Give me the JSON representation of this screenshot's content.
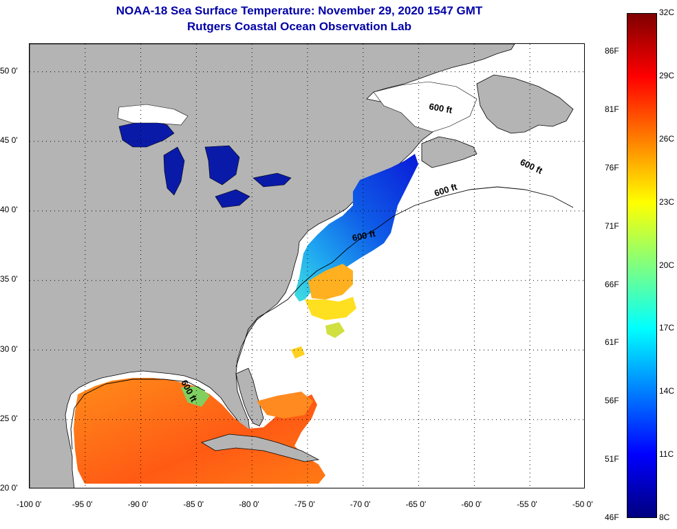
{
  "title": {
    "line1": "NOAA-18 Sea Surface Temperature:  November 29, 2020 1547 GMT",
    "line2": "Rutgers Coastal Ocean Observation Lab"
  },
  "map": {
    "lon_range": [
      -100,
      -50
    ],
    "lat_range": [
      20,
      52
    ],
    "lon_ticks": [
      "-100 0'",
      "-95 0'",
      "-90 0'",
      "-85 0'",
      "-80 0'",
      "-75 0'",
      "-70 0'",
      "-65 0'",
      "-60 0'",
      "-55 0'",
      "-50 0'"
    ],
    "lon_tick_values": [
      -100,
      -95,
      -90,
      -85,
      -80,
      -75,
      -70,
      -65,
      -60,
      -55,
      -50
    ],
    "lat_ticks": [
      "20 0'",
      "25 0'",
      "30 0'",
      "35 0'",
      "40 0'",
      "45 0'",
      "50 0'"
    ],
    "lat_tick_values": [
      20,
      25,
      30,
      35,
      40,
      45,
      50
    ],
    "grid": "dotted",
    "land_color": "#b4b4b4",
    "isobath_labels": [
      "600 ft",
      "600 ft",
      "600 ft",
      "600 ft",
      "600 ft"
    ]
  },
  "colorbar": {
    "celsius_labels": [
      "32C",
      "29C",
      "26C",
      "23C",
      "20C",
      "17C",
      "14C",
      "11C",
      "8C"
    ],
    "fahrenheit_labels": [
      "86F",
      "81F",
      "76F",
      "71F",
      "66F",
      "61F",
      "56F",
      "51F",
      "46F"
    ],
    "range_c": [
      8,
      32
    ],
    "colors": [
      "#00007f",
      "#0000ff",
      "#007fff",
      "#00ffff",
      "#7fff7f",
      "#ffff00",
      "#ff7f00",
      "#ff0000",
      "#7f0000"
    ]
  }
}
